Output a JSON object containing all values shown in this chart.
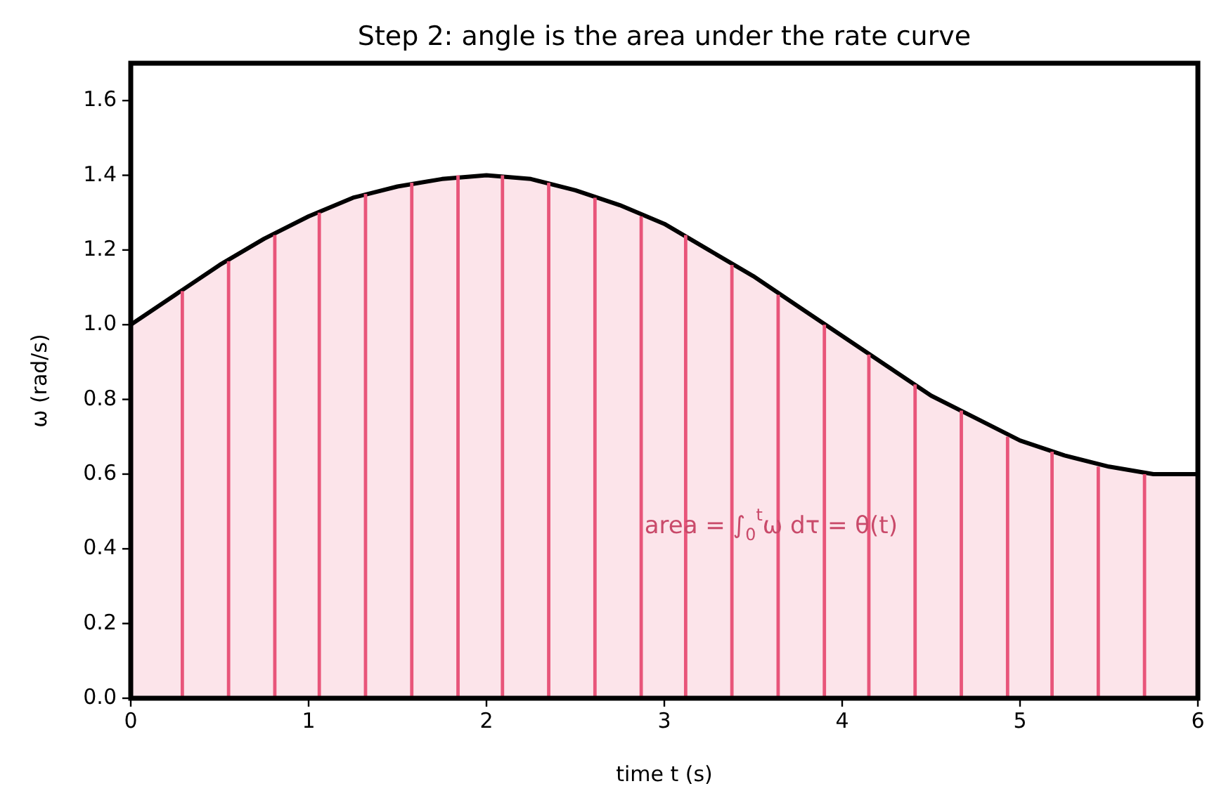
{
  "chart_data": {
    "type": "area",
    "title": "Step 2: angle is the area under the rate curve",
    "xlabel": "time  t  (s)",
    "ylabel": "ω  (rad/s)",
    "xlim": [
      0,
      6
    ],
    "ylim": [
      0,
      1.7
    ],
    "xticks": [
      0,
      1,
      2,
      3,
      4,
      5,
      6
    ],
    "yticks": [
      {
        "value": 0,
        "label": "0.0"
      },
      0.2,
      0.4,
      0.6,
      0.8,
      {
        "value": 1,
        "label": "1.0"
      },
      1.2,
      1.4,
      1.6
    ],
    "grid": false,
    "series": [
      {
        "color": "#fce4ea",
        "x": [
          0,
          0.25,
          0.5,
          0.75,
          1,
          1.25,
          1.5,
          1.75,
          2,
          2.25,
          2.5,
          2.75,
          3,
          3.25,
          3.5,
          3.75,
          4,
          4.25,
          4.5,
          4.75,
          5,
          5.25,
          5.5,
          5.75,
          6
        ],
        "values": [
          1.0,
          1.08,
          1.16,
          1.23,
          1.29,
          1.34,
          1.37,
          1.39,
          1.4,
          1.39,
          1.36,
          1.32,
          1.27,
          1.2,
          1.13,
          1.05,
          0.97,
          0.89,
          0.81,
          0.75,
          0.69,
          0.65,
          0.62,
          0.6,
          0.6
        ]
      },
      {
        "type": "bar",
        "color": "#e8557a",
        "x": [
          0.29,
          0.55,
          0.81,
          1.06,
          1.32,
          1.58,
          1.84,
          2.09,
          2.35,
          2.61,
          2.87,
          3.12,
          3.38,
          3.64,
          3.9,
          4.15,
          4.41,
          4.67,
          4.93,
          5.18,
          5.44,
          5.7
        ],
        "values": [
          1.09,
          1.17,
          1.24,
          1.3,
          1.35,
          1.38,
          1.4,
          1.4,
          1.38,
          1.34,
          1.29,
          1.24,
          1.16,
          1.08,
          1.0,
          0.92,
          0.84,
          0.77,
          0.7,
          0.66,
          0.62,
          0.6
        ]
      }
    ],
    "annotations": [
      {
        "text": "area = ∫$_{0}$$^{t}$ω dτ = θ(t)",
        "x": 3.6,
        "y": 0.46
      }
    ]
  }
}
